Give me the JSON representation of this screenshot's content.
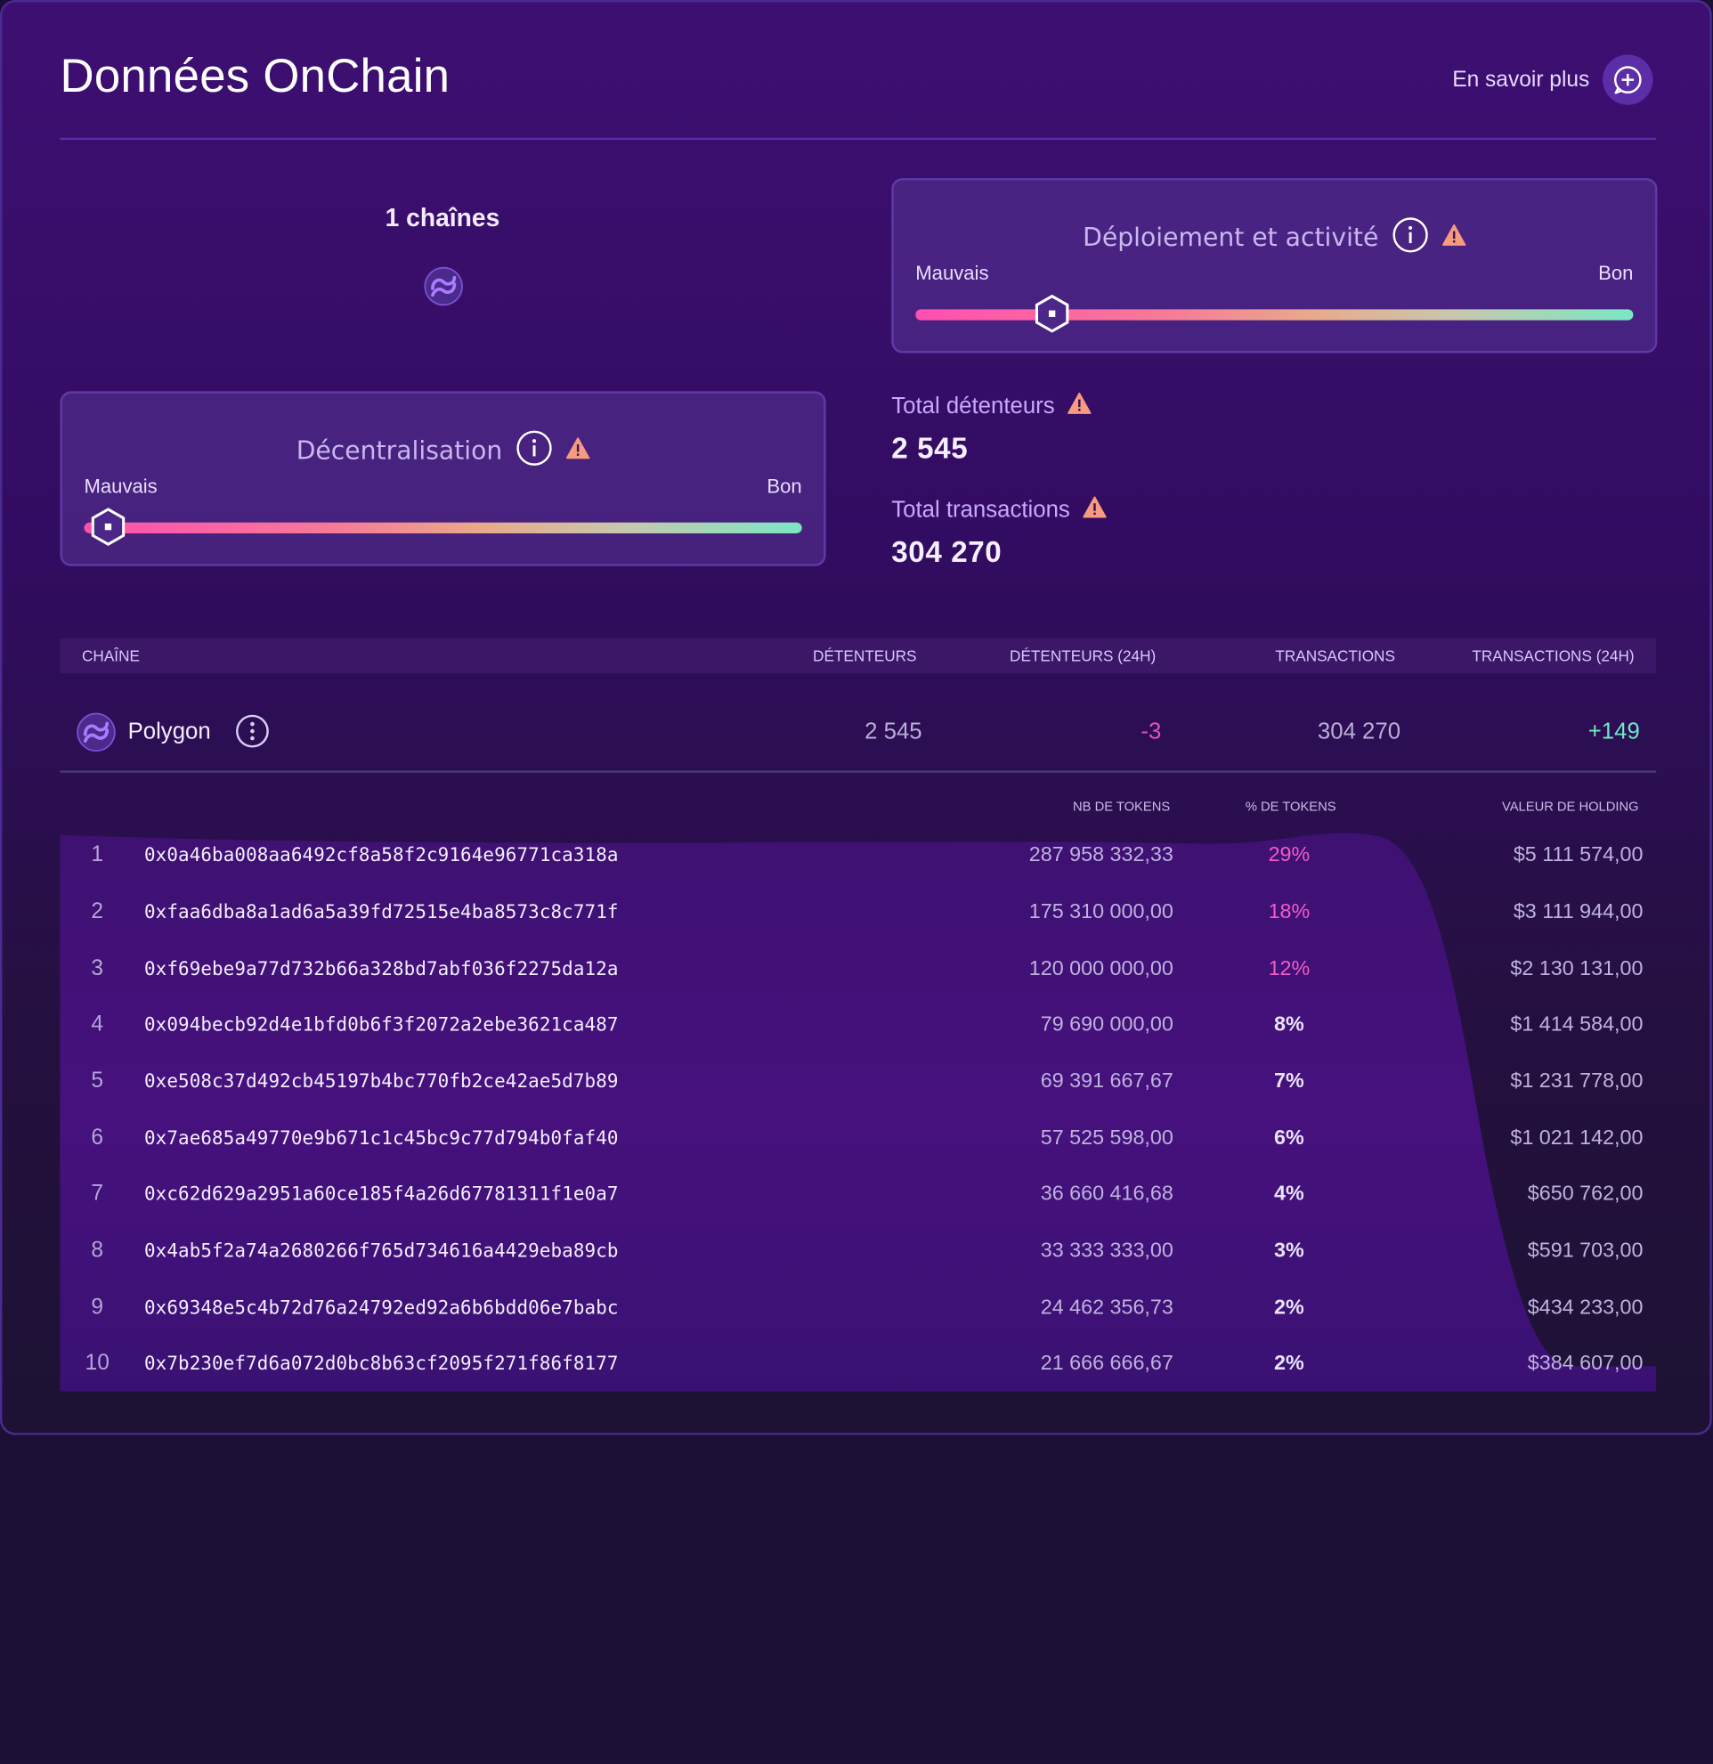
{
  "header": {
    "title": "Données OnChain",
    "learn_more": "En savoir plus",
    "learn_more_icon": "plus-circle-icon"
  },
  "chains": {
    "title": "1 chaînes",
    "icons": [
      "polygon-icon"
    ]
  },
  "deployment": {
    "title": "Déploiement et activité",
    "bad": "Mauvais",
    "good": "Bon",
    "level": 0.19
  },
  "decentralization": {
    "title": "Décentralisation",
    "bad": "Mauvais",
    "good": "Bon",
    "level": 0.03
  },
  "stats": {
    "holders_label": "Total détenteurs",
    "holders_value": "2 545",
    "tx_label": "Total transactions",
    "tx_value": "304 270"
  },
  "chain_table": {
    "headers": {
      "chain": "CHAÎNE",
      "holders": "DÉTENTEURS",
      "holders_24h": "DÉTENTEURS (24H)",
      "transactions": "TRANSACTIONS",
      "transactions_24h": "TRANSACTIONS (24H)"
    },
    "rows": [
      {
        "name": "Polygon",
        "holders": "2 545",
        "holders_24h": "-3",
        "transactions": "304 270",
        "transactions_24h": "+149"
      }
    ]
  },
  "holders_table": {
    "headers": {
      "tokens": "NB DE TOKENS",
      "percent": "% DE TOKENS",
      "value": "VALEUR DE HOLDING"
    },
    "rows": [
      {
        "rank": "1",
        "address": "0x0a46ba008aa6492cf8a58f2c9164e96771ca318a",
        "tokens": "287 958 332,33",
        "percent": "29%",
        "value": "$5 111 574,00"
      },
      {
        "rank": "2",
        "address": "0xfaa6dba8a1ad6a5a39fd72515e4ba8573c8c771f",
        "tokens": "175 310 000,00",
        "percent": "18%",
        "value": "$3 111 944,00"
      },
      {
        "rank": "3",
        "address": "0xf69ebe9a77d732b66a328bd7abf036f2275da12a",
        "tokens": "120 000 000,00",
        "percent": "12%",
        "value": "$2 130 131,00"
      },
      {
        "rank": "4",
        "address": "0x094becb92d4e1bfd0b6f3f2072a2ebe3621ca487",
        "tokens": "79 690 000,00",
        "percent": "8%",
        "value": "$1 414 584,00"
      },
      {
        "rank": "5",
        "address": "0xe508c37d492cb45197b4bc770fb2ce42ae5d7b89",
        "tokens": "69 391 667,67",
        "percent": "7%",
        "value": "$1 231 778,00"
      },
      {
        "rank": "6",
        "address": "0x7ae685a49770e9b671c1c45bc9c77d794b0faf40",
        "tokens": "57 525 598,00",
        "percent": "6%",
        "value": "$1 021 142,00"
      },
      {
        "rank": "7",
        "address": "0xc62d629a2951a60ce185f4a26d67781311f1e0a7",
        "tokens": "36 660 416,68",
        "percent": "4%",
        "value": "$650 762,00"
      },
      {
        "rank": "8",
        "address": "0x4ab5f2a74a2680266f765d734616a4429eba89cb",
        "tokens": "33 333 333,00",
        "percent": "3%",
        "value": "$591 703,00"
      },
      {
        "rank": "9",
        "address": "0x69348e5c4b72d76a24792ed92a6b6bdd06e7babc",
        "tokens": "24 462 356,73",
        "percent": "2%",
        "value": "$434 233,00"
      },
      {
        "rank": "10",
        "address": "0x7b230ef7d6a072d0bc8b63cf2095f271f86f8177",
        "tokens": "21 666 666,67",
        "percent": "2%",
        "value": "$384 607,00"
      }
    ]
  },
  "colors": {
    "negative": "#e64fbf",
    "positive": "#6fe8c4",
    "pct_high": "#f25cc7",
    "pct_normal": "#e9e3fa",
    "warning": "#f79a7e",
    "accent": "#5b2da7"
  }
}
